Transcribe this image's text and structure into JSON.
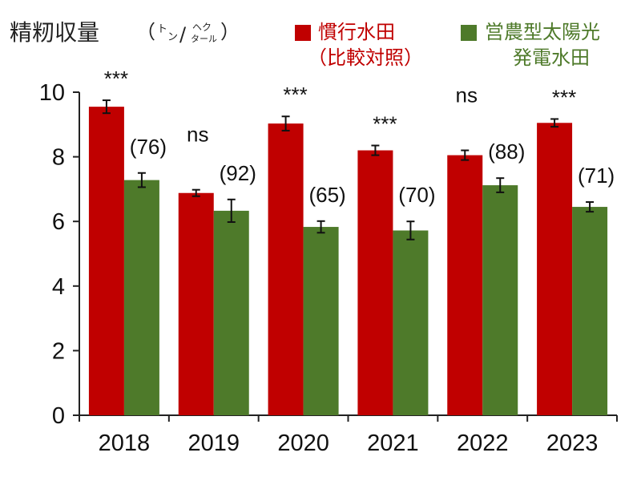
{
  "chart_data": {
    "type": "bar",
    "ylabel": "精籾収量",
    "ylabel_unit": {
      "part1": "（",
      "part2": "ト",
      "part3": "ン",
      "part4": "/",
      "part5": "ヘク",
      "part6": "タール",
      "part7": "）"
    },
    "categories": [
      "2018",
      "2019",
      "2020",
      "2021",
      "2022",
      "2023"
    ],
    "series": [
      {
        "name": "慣行水田（比較対照）",
        "name_lines": [
          "慣行水田",
          "（比較対照）"
        ],
        "color": "#c00000",
        "values": [
          9.55,
          6.88,
          9.03,
          8.2,
          8.05,
          9.05
        ],
        "errors": [
          0.2,
          0.1,
          0.22,
          0.15,
          0.15,
          0.12
        ]
      },
      {
        "name": "営農型太陽光発電水田",
        "name_lines": [
          "営農型太陽光",
          "発電水田"
        ],
        "color": "#4e7a2a",
        "values": [
          7.28,
          6.33,
          5.83,
          5.72,
          7.12,
          6.45
        ],
        "errors": [
          0.22,
          0.35,
          0.18,
          0.28,
          0.22,
          0.15
        ]
      }
    ],
    "significance": [
      "***",
      "ns",
      "***",
      "***",
      "ns",
      "***"
    ],
    "ratio_labels": [
      "(76)",
      "(92)",
      "(65)",
      "(70)",
      "(88)",
      "(71)"
    ],
    "ylim": [
      0,
      10
    ],
    "yticks": [
      0,
      2,
      4,
      6,
      8,
      10
    ],
    "grid": false,
    "legend_position": "top-right"
  }
}
